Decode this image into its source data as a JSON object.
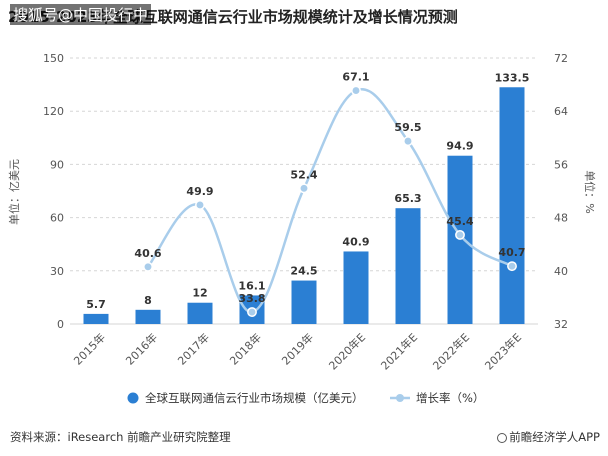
{
  "header": {
    "title": "2015-2023年全球互联网通信云行业市场规模统计及增长情况预测",
    "watermark": "搜狐号@中国投行中"
  },
  "footer": {
    "source": "资料来源：iResearch 前瞻产业研究院整理",
    "brand": "前瞻经济学人APP"
  },
  "colors": {
    "bar": "#2b7fd3",
    "line": "#a9cdeb",
    "marker": "#a9cdeb"
  },
  "chart_data": {
    "type": "bar",
    "categories": [
      "2015年",
      "2016年",
      "2017年",
      "2018年",
      "2019年",
      "2020年E",
      "2021年E",
      "2022年E",
      "2023年E"
    ],
    "series": [
      {
        "name": "全球互联网通信云行业市场规模（亿美元）",
        "type": "bar",
        "axis": "left",
        "values": [
          5.7,
          8,
          12,
          16.1,
          24.5,
          40.9,
          65.3,
          94.9,
          133.5
        ]
      },
      {
        "name": "增长率（%）",
        "type": "line",
        "axis": "right",
        "values": [
          null,
          40.6,
          49.9,
          33.8,
          52.4,
          67.1,
          59.5,
          45.4,
          40.7
        ]
      }
    ],
    "ylabel": "单位：亿美元",
    "ylabel_right": "单位：%",
    "ylim": [
      0,
      150
    ],
    "yticks": [
      0,
      30,
      60,
      90,
      120,
      150
    ],
    "ylim_right": [
      32,
      72
    ],
    "yticks_right": [
      32,
      40,
      48,
      56,
      64,
      72
    ],
    "legend_position": "bottom",
    "grid": "horizontal dashed"
  }
}
